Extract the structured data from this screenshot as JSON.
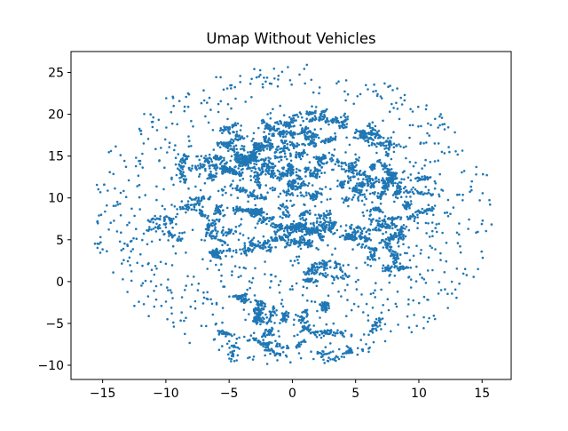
{
  "chart_data": {
    "type": "scatter",
    "title": "Umap Without Vehicles",
    "xlabel": "",
    "ylabel": "",
    "xlim": [
      -17.5,
      17.3
    ],
    "ylim": [
      -11.7,
      27.5
    ],
    "xticks": [
      -15,
      -10,
      -5,
      0,
      5,
      10,
      15
    ],
    "yticks": [
      -10,
      -5,
      0,
      5,
      10,
      15,
      20,
      25
    ],
    "grid": false,
    "legend": "none",
    "series_color": "#1f77b4",
    "point_density": {
      "description": "dense core of clustered points with sparse halo",
      "x_range": [
        -16,
        16
      ],
      "y_range": [
        -10,
        26
      ],
      "dense_clusters": [
        {
          "x": -4,
          "y": 16.5,
          "sx": 1.4,
          "sy": 1.2,
          "n": 220
        },
        {
          "x": -1.5,
          "y": 17.5,
          "sx": 1.6,
          "sy": 1.5,
          "n": 220
        },
        {
          "x": 2.5,
          "y": 18.5,
          "sx": 1.6,
          "sy": 1.2,
          "n": 200
        },
        {
          "x": 7,
          "y": 17,
          "sx": 1.5,
          "sy": 1.5,
          "n": 180
        },
        {
          "x": -7,
          "y": 13,
          "sx": 1.5,
          "sy": 1.4,
          "n": 200
        },
        {
          "x": -3,
          "y": 12.5,
          "sx": 1.8,
          "sy": 1.6,
          "n": 320
        },
        {
          "x": 1,
          "y": 12.5,
          "sx": 1.8,
          "sy": 1.6,
          "n": 300
        },
        {
          "x": 5,
          "y": 12,
          "sx": 1.6,
          "sy": 1.5,
          "n": 260
        },
        {
          "x": 9,
          "y": 10.5,
          "sx": 1.4,
          "sy": 1.4,
          "n": 180
        },
        {
          "x": -8,
          "y": 8,
          "sx": 1.6,
          "sy": 1.6,
          "n": 180
        },
        {
          "x": -4,
          "y": 8.5,
          "sx": 1.8,
          "sy": 1.6,
          "n": 260
        },
        {
          "x": 0,
          "y": 6,
          "sx": 1.5,
          "sy": 1.2,
          "n": 320
        },
        {
          "x": 4,
          "y": 7.5,
          "sx": 1.6,
          "sy": 1.4,
          "n": 240
        },
        {
          "x": 8,
          "y": 6.5,
          "sx": 1.6,
          "sy": 1.4,
          "n": 180
        },
        {
          "x": -5,
          "y": 4,
          "sx": 1.5,
          "sy": 1.3,
          "n": 180
        },
        {
          "x": 2,
          "y": 1.2,
          "sx": 1.0,
          "sy": 0.5,
          "n": 140
        },
        {
          "x": 6,
          "y": 2,
          "sx": 1.8,
          "sy": 1.3,
          "n": 140
        },
        {
          "x": -3.5,
          "y": -4,
          "sx": 1.6,
          "sy": 1.2,
          "n": 140
        },
        {
          "x": 0,
          "y": -4,
          "sx": 1.8,
          "sy": 1.3,
          "n": 150
        },
        {
          "x": 4,
          "y": -5,
          "sx": 1.6,
          "sy": 1.2,
          "n": 130
        },
        {
          "x": -1,
          "y": -7.5,
          "sx": 1.8,
          "sy": 1.0,
          "n": 90
        },
        {
          "x": 3,
          "y": -8.5,
          "sx": 1.4,
          "sy": 0.8,
          "n": 60
        }
      ],
      "sparse_points": 1100
    }
  }
}
